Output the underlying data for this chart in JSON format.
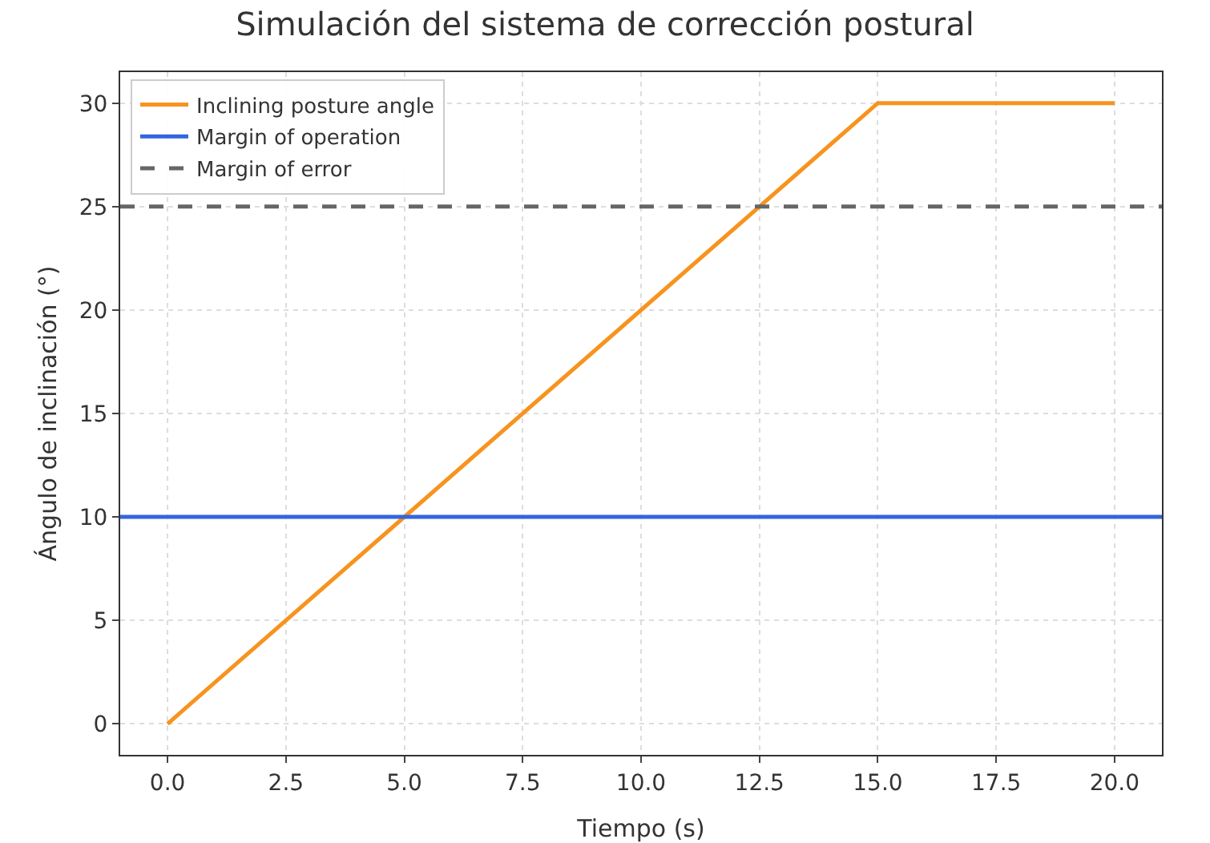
{
  "chart_data": {
    "type": "line",
    "title": "Simulación del sistema de corrección postural",
    "xlabel": "Tiempo (s)",
    "ylabel": "Ángulo de inclinación (°)",
    "x": [
      0,
      15,
      20
    ],
    "series": [
      {
        "name": "Inclining posture angle",
        "color": "#f7931e",
        "values": [
          0,
          30,
          30
        ]
      }
    ],
    "ref_lines": [
      {
        "axis": "y",
        "value": 10,
        "label": "Margin of operation",
        "color": "#3366dd",
        "line_style": "solid"
      },
      {
        "axis": "y",
        "value": 25,
        "label": "Margin of error",
        "color": "#666666",
        "line_style": "dashed"
      }
    ],
    "xlim": [
      -1,
      21
    ],
    "xticks": [
      {
        "value": 0,
        "label": "0.0"
      },
      {
        "value": 2.5,
        "label": "2.5"
      },
      {
        "value": 5,
        "label": "5.0"
      },
      {
        "value": 7.5,
        "label": "7.5"
      },
      {
        "value": 10,
        "label": "10.0"
      },
      {
        "value": 12.5,
        "label": "12.5"
      },
      {
        "value": 15,
        "label": "15.0"
      },
      {
        "value": 17.5,
        "label": "17.5"
      },
      {
        "value": 20,
        "label": "20.0"
      }
    ],
    "ylim": [
      -1.5,
      31.5
    ],
    "yticks": [
      0,
      5,
      10,
      15,
      20,
      25,
      30
    ],
    "grid": true,
    "legend": "top left",
    "marker": "none",
    "line_style": "solid"
  }
}
